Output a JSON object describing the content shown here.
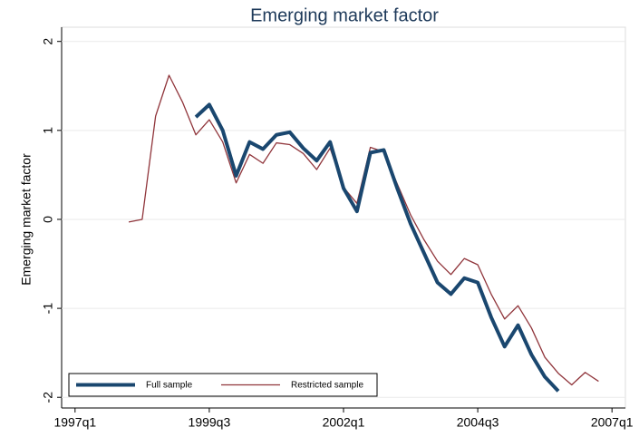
{
  "chart_data": {
    "type": "line",
    "title": "Emerging market factor",
    "y_label": "Emerging market factor",
    "categories": [
      "1997q1",
      null,
      null,
      null,
      null,
      null,
      null,
      null,
      null,
      null,
      "1999q3",
      null,
      null,
      null,
      null,
      null,
      null,
      null,
      null,
      null,
      "2002q1",
      null,
      null,
      null,
      null,
      null,
      null,
      null,
      null,
      null,
      "2004q3",
      null,
      null,
      null,
      null,
      null,
      null,
      null,
      null,
      null,
      "2007q1"
    ],
    "series": [
      {
        "name": "Full sample",
        "color": "#1a476f",
        "width": 4,
        "values": [
          null,
          null,
          null,
          null,
          null,
          null,
          null,
          null,
          null,
          1.15,
          1.29,
          1.0,
          0.49,
          0.87,
          0.79,
          0.95,
          0.98,
          0.8,
          0.66,
          0.87,
          0.35,
          0.09,
          0.75,
          0.78,
          0.35,
          -0.05,
          -0.38,
          -0.71,
          -0.84,
          -0.66,
          -0.71,
          -1.1,
          -1.43,
          -1.19,
          -1.52,
          -1.77,
          -1.93,
          null,
          null,
          null,
          null
        ]
      },
      {
        "name": "Restricted sample",
        "color": "#90353b",
        "width": 1.3,
        "values": [
          null,
          null,
          null,
          null,
          -0.03,
          0,
          1.16,
          1.62,
          1.32,
          0.95,
          1.12,
          0.87,
          0.41,
          0.73,
          0.63,
          0.86,
          0.84,
          0.74,
          0.56,
          0.8,
          0.36,
          0.18,
          0.81,
          0.76,
          0.4,
          0.05,
          -0.23,
          -0.47,
          -0.62,
          -0.44,
          -0.51,
          -0.84,
          -1.12,
          -0.97,
          -1.22,
          -1.55,
          -1.73,
          -1.86,
          -1.72,
          -1.82,
          null
        ]
      }
    ],
    "ylim": [
      -2.12,
      2.16
    ],
    "yticks": [
      -2,
      -1,
      0,
      1,
      2
    ],
    "grid": true,
    "legend": "bottom-left"
  }
}
